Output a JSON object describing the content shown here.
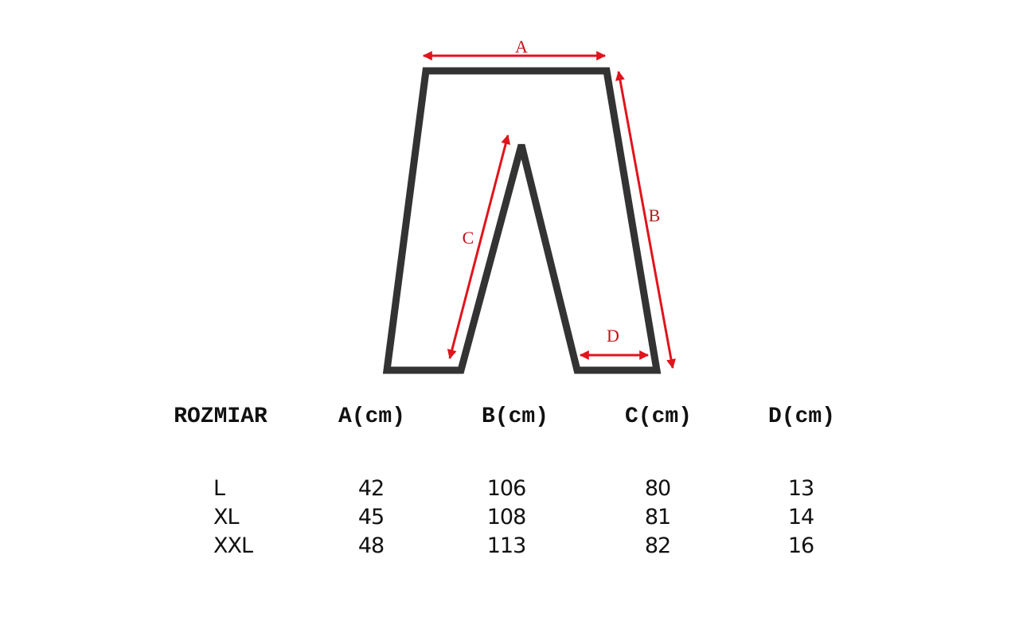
{
  "diagram": {
    "labels": {
      "a": "A",
      "b": "B",
      "c": "C",
      "d": "D"
    },
    "colors": {
      "outline": "#333333",
      "arrow": "#e0141c"
    }
  },
  "table": {
    "headers": [
      "ROZMIAR",
      "A(cm)",
      "B(cm)",
      "C(cm)",
      "D(cm)"
    ],
    "rows": [
      [
        "L",
        "42",
        "106",
        "80",
        "13"
      ],
      [
        "XL",
        "45",
        "108",
        "81",
        "14"
      ],
      [
        "XXL",
        "48",
        "113",
        "82",
        "16"
      ]
    ]
  }
}
